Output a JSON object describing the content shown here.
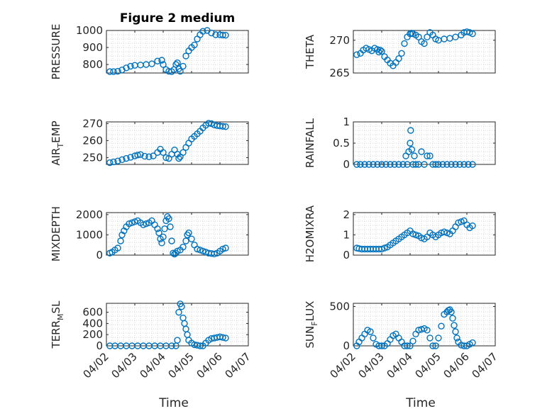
{
  "figure": {
    "xlabel": "Time",
    "x_ticks": [
      "04/02",
      "04/03",
      "04/04",
      "04/05",
      "04/06",
      "04/07"
    ],
    "marker_color": "#0072BD"
  },
  "chart_data": [
    {
      "type": "scatter",
      "title": "Figure 2 medium",
      "ylabel": "PRESSURE",
      "ylabel_sub": "",
      "ylim": [
        750,
        1000
      ],
      "yticks": [
        800,
        900,
        1000
      ],
      "ytick_labels": [
        "800",
        "900",
        "1000"
      ],
      "xlim": [
        0,
        5
      ],
      "grid": true,
      "x": [
        0.12,
        0.25,
        0.4,
        0.55,
        0.7,
        0.85,
        1.0,
        1.2,
        1.4,
        1.6,
        1.8,
        1.95,
        2.0,
        2.1,
        2.2,
        2.3,
        2.38,
        2.45,
        2.5,
        2.55,
        2.6,
        2.7,
        2.8,
        2.9,
        3.0,
        3.1,
        3.2,
        3.3,
        3.4,
        3.55,
        3.7,
        3.85,
        4.0,
        4.1,
        4.2
      ],
      "y": [
        758,
        758,
        760,
        768,
        780,
        790,
        795,
        797,
        800,
        804,
        820,
        825,
        800,
        770,
        760,
        758,
        770,
        800,
        810,
        775,
        760,
        790,
        850,
        880,
        900,
        915,
        950,
        975,
        995,
        1000,
        985,
        975,
        975,
        973,
        972
      ]
    },
    {
      "type": "scatter",
      "title": "",
      "ylabel": "THETA",
      "ylabel_sub": "",
      "ylim": [
        265,
        271.5
      ],
      "yticks": [
        265,
        270
      ],
      "ytick_labels": [
        "265",
        "270"
      ],
      "xlim": [
        0,
        5
      ],
      "grid": true,
      "x": [
        0.12,
        0.25,
        0.35,
        0.45,
        0.55,
        0.65,
        0.75,
        0.85,
        0.9,
        0.95,
        1.0,
        1.1,
        1.2,
        1.3,
        1.4,
        1.5,
        1.6,
        1.7,
        1.8,
        1.9,
        2.0,
        2.05,
        2.1,
        2.2,
        2.3,
        2.4,
        2.5,
        2.6,
        2.7,
        2.8,
        2.9,
        3.0,
        3.2,
        3.4,
        3.6,
        3.8,
        3.9,
        4.0,
        4.1,
        4.2
      ],
      "y": [
        267.8,
        268,
        268.5,
        268.8,
        268.6,
        268.4,
        268.8,
        268.6,
        268.2,
        268.5,
        268.3,
        267.5,
        267,
        266.5,
        266.1,
        266.6,
        267.2,
        268,
        269.5,
        270.5,
        271,
        271.1,
        271,
        270.8,
        270.5,
        269.8,
        269.5,
        270.5,
        271.2,
        270.8,
        270.2,
        270,
        270.2,
        270.3,
        270.5,
        270.8,
        271.2,
        271.3,
        271.2,
        271
      ]
    },
    {
      "type": "scatter",
      "title": "",
      "ylabel": "AIR",
      "ylabel_sub": "T",
      "ylabel_tail": "EMP",
      "ylim": [
        246,
        271
      ],
      "yticks": [
        250,
        260,
        270
      ],
      "ytick_labels": [
        "250",
        "260",
        "270"
      ],
      "xlim": [
        0,
        5
      ],
      "grid": true,
      "x": [
        0.12,
        0.25,
        0.4,
        0.55,
        0.7,
        0.85,
        1.0,
        1.1,
        1.2,
        1.35,
        1.5,
        1.65,
        1.8,
        1.9,
        2.0,
        2.1,
        2.2,
        2.3,
        2.4,
        2.5,
        2.55,
        2.6,
        2.7,
        2.8,
        2.9,
        3.0,
        3.1,
        3.2,
        3.3,
        3.4,
        3.5,
        3.6,
        3.7,
        3.8,
        3.9,
        4.0,
        4.1,
        4.2
      ],
      "y": [
        247,
        247.5,
        248,
        248.8,
        249.5,
        250.2,
        251,
        251.5,
        251.8,
        250.8,
        250.5,
        251,
        253,
        255,
        253,
        250,
        249.5,
        252,
        254.5,
        252,
        249.5,
        250.5,
        253,
        256,
        258.5,
        261,
        262.5,
        264,
        265.5,
        267.5,
        269,
        270.2,
        270,
        269.2,
        268.8,
        268.6,
        268.4,
        268.2
      ]
    },
    {
      "type": "scatter",
      "title": "",
      "ylabel": "RAINFALL",
      "ylabel_sub": "",
      "ylim": [
        0,
        1
      ],
      "yticks": [
        0,
        0.5,
        1
      ],
      "ytick_labels": [
        "0",
        "0.5",
        "1"
      ],
      "xlim": [
        0,
        5
      ],
      "grid": true,
      "x": [
        0.12,
        0.25,
        0.4,
        0.55,
        0.7,
        0.85,
        1.0,
        1.15,
        1.3,
        1.45,
        1.6,
        1.75,
        1.85,
        1.9,
        1.95,
        2.0,
        2.02,
        2.06,
        2.1,
        2.15,
        2.2,
        2.3,
        2.4,
        2.5,
        2.6,
        2.7,
        2.8,
        2.9,
        3.0,
        3.15,
        3.3,
        3.45,
        3.6,
        3.75,
        3.9,
        4.05,
        4.2
      ],
      "y": [
        0,
        0,
        0,
        0,
        0,
        0,
        0,
        0,
        0,
        0,
        0,
        0,
        0.2,
        0,
        0.3,
        0.5,
        0.8,
        0.35,
        0,
        0.2,
        0,
        0,
        0.3,
        0,
        0.2,
        0.2,
        0,
        0,
        0,
        0,
        0,
        0,
        0,
        0,
        0,
        0,
        0
      ]
    },
    {
      "type": "scatter",
      "title": "",
      "ylabel": "MIXDEPTH",
      "ylabel_sub": "",
      "ylim": [
        0,
        2100
      ],
      "yticks": [
        0,
        1000,
        2000
      ],
      "ytick_labels": [
        "0",
        "1000",
        "2000"
      ],
      "xlim": [
        0,
        5
      ],
      "grid": true,
      "x": [
        0.12,
        0.2,
        0.3,
        0.4,
        0.5,
        0.55,
        0.62,
        0.7,
        0.8,
        0.9,
        1.0,
        1.1,
        1.2,
        1.3,
        1.4,
        1.5,
        1.6,
        1.7,
        1.8,
        1.85,
        1.9,
        1.95,
        2.0,
        2.05,
        2.1,
        2.15,
        2.2,
        2.25,
        2.3,
        2.35,
        2.4,
        2.45,
        2.5,
        2.6,
        2.7,
        2.8,
        2.85,
        2.9,
        3.0,
        3.1,
        3.2,
        3.3,
        3.4,
        3.5,
        3.6,
        3.7,
        3.8,
        3.9,
        4.0,
        4.1,
        4.2
      ],
      "y": [
        100,
        150,
        250,
        350,
        700,
        1000,
        1200,
        1400,
        1550,
        1600,
        1650,
        1700,
        1600,
        1500,
        1550,
        1600,
        1700,
        1500,
        1300,
        1100,
        800,
        600,
        900,
        1300,
        1700,
        1900,
        1800,
        1400,
        700,
        100,
        50,
        100,
        200,
        250,
        400,
        700,
        1000,
        1100,
        800,
        500,
        300,
        250,
        200,
        150,
        100,
        80,
        60,
        100,
        200,
        300,
        350
      ]
    },
    {
      "type": "scatter",
      "title": "",
      "ylabel": "H2OMIXRA",
      "ylabel_sub": "",
      "ylim": [
        0,
        2.1
      ],
      "yticks": [
        0,
        1,
        2
      ],
      "ytick_labels": [
        "0",
        "1",
        "2"
      ],
      "xlim": [
        0,
        5
      ],
      "grid": true,
      "x": [
        0.12,
        0.2,
        0.3,
        0.4,
        0.5,
        0.6,
        0.7,
        0.8,
        0.9,
        1.0,
        1.1,
        1.2,
        1.3,
        1.4,
        1.5,
        1.6,
        1.7,
        1.8,
        1.9,
        2.0,
        2.1,
        2.2,
        2.3,
        2.4,
        2.5,
        2.6,
        2.7,
        2.8,
        2.9,
        3.0,
        3.1,
        3.2,
        3.3,
        3.4,
        3.5,
        3.6,
        3.7,
        3.8,
        3.9,
        4.0,
        4.1,
        4.2
      ],
      "y": [
        0.35,
        0.32,
        0.3,
        0.3,
        0.3,
        0.3,
        0.3,
        0.3,
        0.3,
        0.3,
        0.35,
        0.4,
        0.5,
        0.6,
        0.7,
        0.8,
        0.9,
        1.0,
        1.1,
        1.2,
        1.05,
        1.0,
        0.95,
        0.85,
        0.8,
        0.9,
        1.1,
        1.0,
        0.9,
        1.0,
        1.1,
        1.15,
        1.1,
        1.05,
        1.2,
        1.4,
        1.6,
        1.65,
        1.7,
        1.5,
        1.35,
        1.45
      ]
    },
    {
      "type": "scatter",
      "title": "",
      "ylabel": "TERR",
      "ylabel_sub": "M",
      "ylabel_tail": "SL",
      "ylim": [
        0,
        760
      ],
      "yticks": [
        0,
        200,
        400,
        600
      ],
      "ytick_labels": [
        "0",
        "200",
        "400",
        "600"
      ],
      "xlim": [
        0,
        5
      ],
      "grid": true,
      "x": [
        0.12,
        0.3,
        0.5,
        0.7,
        0.9,
        1.1,
        1.3,
        1.5,
        1.7,
        1.9,
        2.1,
        2.3,
        2.45,
        2.5,
        2.55,
        2.6,
        2.65,
        2.7,
        2.75,
        2.8,
        2.85,
        2.9,
        3.0,
        3.1,
        3.2,
        3.3,
        3.4,
        3.5,
        3.6,
        3.7,
        3.8,
        3.9,
        4.0,
        4.1,
        4.2
      ],
      "y": [
        0,
        0,
        0,
        0,
        0,
        0,
        0,
        0,
        0,
        0,
        0,
        0,
        0,
        100,
        600,
        750,
        700,
        500,
        400,
        300,
        200,
        100,
        50,
        20,
        10,
        0,
        0,
        50,
        100,
        130,
        140,
        150,
        160,
        150,
        140
      ]
    },
    {
      "type": "scatter",
      "title": "",
      "ylabel": "SUN",
      "ylabel_sub": "F",
      "ylabel_tail": "LUX",
      "ylim": [
        0,
        540
      ],
      "yticks": [
        0,
        500
      ],
      "ytick_labels": [
        "0",
        "500"
      ],
      "xlim": [
        0,
        5
      ],
      "grid": true,
      "x": [
        0.12,
        0.2,
        0.3,
        0.4,
        0.5,
        0.6,
        0.7,
        0.8,
        0.9,
        1.0,
        1.1,
        1.2,
        1.3,
        1.4,
        1.5,
        1.6,
        1.7,
        1.8,
        1.9,
        2.0,
        2.1,
        2.2,
        2.3,
        2.4,
        2.5,
        2.6,
        2.7,
        2.8,
        2.9,
        3.0,
        3.1,
        3.2,
        3.3,
        3.35,
        3.4,
        3.45,
        3.5,
        3.55,
        3.6,
        3.65,
        3.7,
        3.8,
        3.9,
        4.0,
        4.1,
        4.2
      ],
      "y": [
        0,
        50,
        100,
        150,
        200,
        180,
        100,
        20,
        0,
        0,
        0,
        30,
        80,
        130,
        150,
        100,
        50,
        0,
        0,
        0,
        60,
        150,
        200,
        210,
        220,
        200,
        100,
        0,
        0,
        100,
        250,
        400,
        430,
        450,
        460,
        430,
        350,
        260,
        180,
        100,
        50,
        10,
        0,
        0,
        20,
        40
      ]
    }
  ]
}
